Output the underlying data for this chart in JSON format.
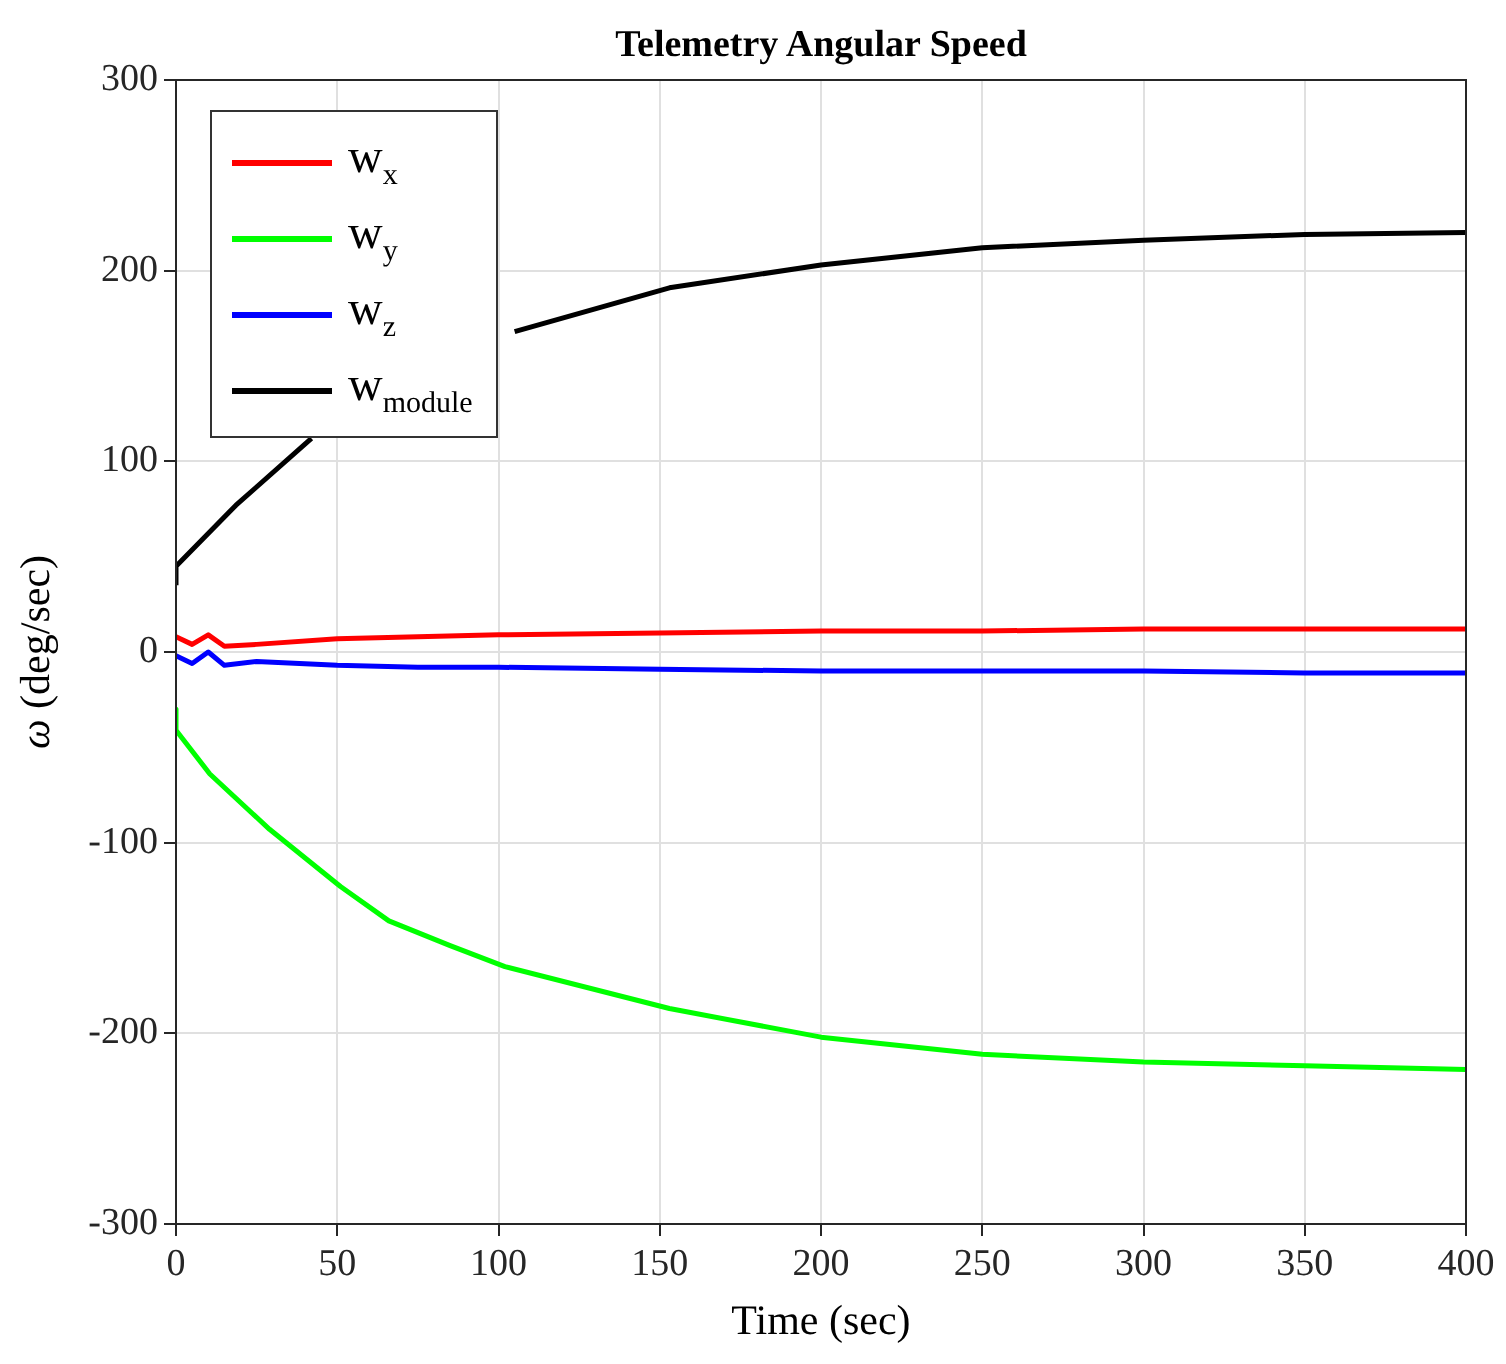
{
  "chart_data": {
    "type": "line",
    "title": "Telemetry Angular Speed",
    "xlabel": "Time (sec)",
    "ylabel": "ω (deg/sec)",
    "xlim": [
      0,
      400
    ],
    "xticks": [
      0,
      50,
      100,
      150,
      200,
      250,
      300,
      350,
      400
    ],
    "ylim": [
      -300,
      300
    ],
    "yticks": [
      -300,
      -200,
      -100,
      0,
      100,
      200,
      300
    ],
    "grid": true,
    "legend": "top left",
    "line_style": "solid",
    "marker": "none",
    "series": [
      {
        "name": "w$_{x}$",
        "color": "#ff0000",
        "x": [
          0,
          5,
          10,
          15,
          25,
          50,
          75,
          100,
          150,
          200,
          250,
          300,
          350,
          400
        ],
        "values": [
          8,
          4,
          9,
          3,
          4,
          7,
          8,
          9,
          10,
          11,
          11,
          12,
          12,
          12
        ]
      },
      {
        "name": "w$_{y}$",
        "color": "#00ff00",
        "x": [
          0,
          0,
          10.5,
          29,
          51,
          66,
          85,
          102,
          153,
          200,
          250,
          300,
          350,
          400
        ],
        "values": [
          -30,
          -41,
          -64,
          -93,
          -123,
          -141,
          -154,
          -165,
          -187,
          -202,
          -211,
          -215,
          -217,
          -219
        ]
      },
      {
        "name": "w$_{z}$",
        "color": "#0000ff",
        "x": [
          0,
          5,
          10,
          15,
          25,
          50,
          75,
          100,
          150,
          200,
          250,
          300,
          350,
          400
        ],
        "values": [
          -2,
          -6,
          0,
          -7,
          -5,
          -7,
          -8,
          -8,
          -9,
          -10,
          -10,
          -10,
          -11,
          -11
        ]
      },
      {
        "name": "w$_{module}$",
        "color": "#000000",
        "x": [
          0,
          0,
          18.6,
          42,
          50,
          105,
          153,
          200,
          250,
          300,
          350,
          400
        ],
        "values": [
          35,
          45,
          77,
          112,
          null,
          168,
          191,
          203,
          212,
          216,
          219,
          220
        ]
      }
    ]
  }
}
